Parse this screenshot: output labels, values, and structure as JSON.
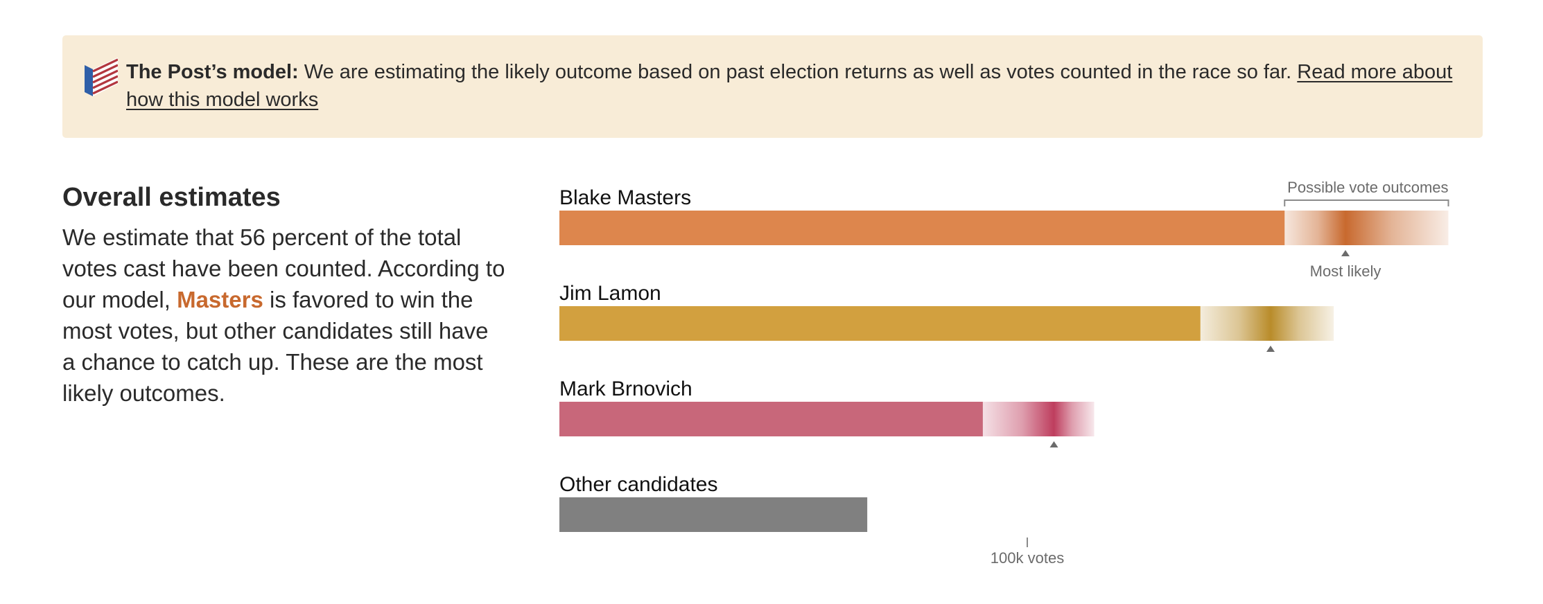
{
  "banner": {
    "title": "The Post’s model:",
    "text": "We are estimating the likely outcome based on past election returns as well as votes counted in the race so far.",
    "link_text": "Read more about how this model works",
    "icon": "flag-logo-icon"
  },
  "overview": {
    "heading": "Overall estimates",
    "text_before": "We estimate that 56 percent of the total votes cast have been counted. According to our model,",
    "candidate": "Masters",
    "text_after": "is favored to win the most votes, but other candidates still have a chance to catch up. These are the most likely outcomes."
  },
  "chart_data": {
    "type": "bar",
    "orientation": "horizontal",
    "unit": "votes",
    "percent_counted": 56,
    "annotation_outcomes": "Possible vote outcomes",
    "annotation_likely": "Most likely",
    "axis_tick": {
      "value": 100000,
      "label": "100k votes"
    },
    "series": [
      {
        "name": "Blake Masters",
        "counted": 155000,
        "range_low": 155000,
        "range_high": 190000,
        "most_likely": 168000,
        "color": "#dd864d",
        "range_color": "#c8692e"
      },
      {
        "name": "Jim Lamon",
        "counted": 137000,
        "range_low": 137000,
        "range_high": 165500,
        "most_likely": 152000,
        "color": "#d2a03f",
        "range_color": "#b98c2a"
      },
      {
        "name": "Mark Brnovich",
        "counted": 90500,
        "range_low": 90500,
        "range_high": 114300,
        "most_likely": 105700,
        "color": "#c8677a",
        "range_color": "#be3e5e"
      },
      {
        "name": "Other candidates",
        "counted": 65800,
        "color": "#808080"
      }
    ]
  }
}
